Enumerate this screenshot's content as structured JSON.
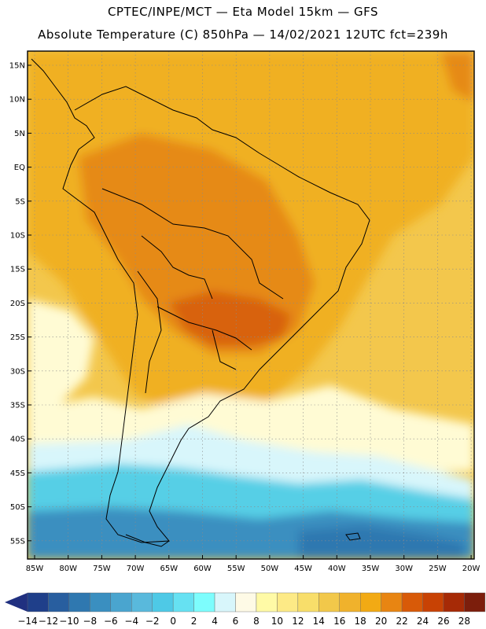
{
  "header": {
    "line1": "CPTEC/INPE/MCT —  Eta Model 15km — GFS",
    "line2": "Absolute Temperature (C) 850hPa — 14/02/2021 12UTC fct=239h"
  },
  "axes": {
    "latitudes": [
      "15N",
      "10N",
      "5N",
      "EQ",
      "5S",
      "10S",
      "15S",
      "20S",
      "25S",
      "30S",
      "35S",
      "40S",
      "45S",
      "50S",
      "55S"
    ],
    "longitudes": [
      "85W",
      "80W",
      "75W",
      "70W",
      "65W",
      "60W",
      "55W",
      "50W",
      "45W",
      "40W",
      "35W",
      "30W",
      "25W",
      "20W"
    ]
  },
  "legend": {
    "labels": [
      "-14",
      "-12",
      "-10",
      "-8",
      "-6",
      "-4",
      "-2",
      "0",
      "2",
      "4",
      "6",
      "8",
      "10",
      "12",
      "14",
      "16",
      "18",
      "20",
      "22",
      "24",
      "26",
      "28"
    ],
    "colors": [
      "#1f3f8a",
      "#285e9f",
      "#2f78b0",
      "#3a8fc0",
      "#4aa5cf",
      "#59b9dc",
      "#4ec9e6",
      "#66e1f2",
      "#7dfdfd",
      "#d8f6fb",
      "#fefae6",
      "#fffaa6",
      "#fdea86",
      "#f8de6a",
      "#f2c84a",
      "#f0b22c",
      "#f2aa14",
      "#e88512",
      "#d85a08",
      "#c84204",
      "#a62a06",
      "#7c1e0c"
    ],
    "left_arrow_color": "#203080",
    "right_arrow_color": "#6c0a2a"
  },
  "map_colors": {
    "ocean_warm": "#f3c74c",
    "land_hot": "#f0b022",
    "core_hot": "#e68a18",
    "hot_spot": "#d8620e",
    "cool_light": "#fffbd4",
    "cool_pale": "#d8f6fb",
    "cool_cyan": "#56cfe6",
    "cold_blue": "#3a8fc0",
    "very_cold": "#2f78b0",
    "coast": "#000000",
    "grid": "#8a8a8a"
  }
}
